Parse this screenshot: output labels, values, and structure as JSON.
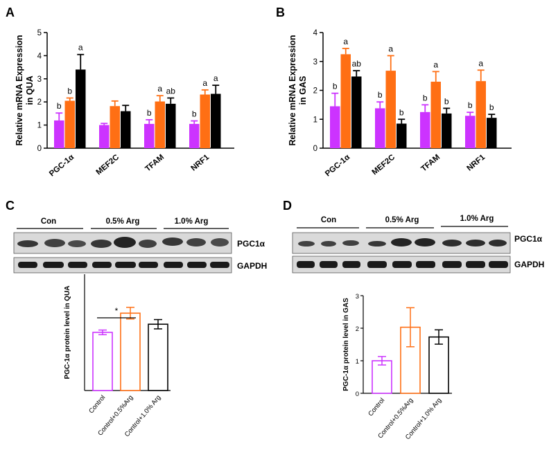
{
  "colors": {
    "purple": "#cc33ff",
    "orange": "#ff6f14",
    "black": "#000000"
  },
  "panels": {
    "a": "A",
    "b": "B",
    "c": "C",
    "d": "D"
  },
  "blots": {
    "c": {
      "groups": [
        "Con",
        "0.5% Arg",
        "1.0% Arg"
      ],
      "target": "PGC1α",
      "loading": "GAPDH"
    },
    "d": {
      "groups": [
        "Con",
        "0.5% Arg",
        "1.0% Arg"
      ],
      "target": "PGC1α",
      "loading": "GAPDH"
    }
  },
  "chart_data": [
    {
      "id": "A",
      "type": "bar",
      "ylabel": "Relative mRNA Expression in QUA",
      "ylabel_lines": [
        "Relative mRNA Expression",
        "in QUA"
      ],
      "ylim": [
        0,
        5
      ],
      "yticks": [
        "0",
        "1",
        "2",
        "3",
        "4",
        "5"
      ],
      "categories": [
        "PGC-1α",
        "MEF2C",
        "TFAM",
        "NRF1"
      ],
      "series": [
        {
          "name": "Control",
          "color": "purple",
          "values": [
            1.2,
            1.0,
            1.05,
            1.05
          ],
          "errors": [
            0.32,
            0.07,
            0.18,
            0.13
          ]
        },
        {
          "name": "Control+0.5%Arg",
          "color": "orange",
          "values": [
            2.05,
            1.82,
            2.02,
            2.32
          ],
          "errors": [
            0.12,
            0.22,
            0.25,
            0.2
          ]
        },
        {
          "name": "Control+1.0% Arg",
          "color": "black",
          "values": [
            3.4,
            1.6,
            1.92,
            2.35
          ],
          "errors": [
            0.65,
            0.25,
            0.25,
            0.37
          ]
        }
      ],
      "annotations": [
        [
          "b",
          "b",
          "a"
        ],
        [
          "",
          "",
          ""
        ],
        [
          "b",
          "a",
          "ab"
        ],
        [
          "b",
          "a",
          "a"
        ]
      ]
    },
    {
      "id": "B",
      "type": "bar",
      "ylabel": "Relative mRNA Expression in GAS",
      "ylabel_lines": [
        "Relative mRNA Expression",
        "in GAS"
      ],
      "ylim": [
        0,
        4
      ],
      "yticks": [
        "0",
        "1",
        "2",
        "3",
        "4"
      ],
      "categories": [
        "PGC-1α",
        "MEF2C",
        "TFAM",
        "NRF1"
      ],
      "series": [
        {
          "name": "Control",
          "color": "purple",
          "values": [
            1.45,
            1.38,
            1.25,
            1.12
          ],
          "errors": [
            0.45,
            0.22,
            0.25,
            0.12
          ]
        },
        {
          "name": "Control+0.5%Arg",
          "color": "orange",
          "values": [
            3.25,
            2.68,
            2.3,
            2.32
          ],
          "errors": [
            0.2,
            0.52,
            0.35,
            0.38
          ]
        },
        {
          "name": "Control+1.0% Arg",
          "color": "black",
          "values": [
            2.48,
            0.85,
            1.2,
            1.05
          ],
          "errors": [
            0.2,
            0.15,
            0.18,
            0.12
          ]
        }
      ],
      "annotations": [
        [
          "b",
          "a",
          "ab"
        ],
        [
          "b",
          "a",
          "b"
        ],
        [
          "b",
          "a",
          "b"
        ],
        [
          "b",
          "a",
          "b"
        ]
      ]
    },
    {
      "id": "C",
      "type": "bar",
      "style": "open",
      "ylabel": "PGC-1α protein level in QUA",
      "ylim": [
        0,
        2.0
      ],
      "categories": [
        "Control",
        "Control+0.5%Arg",
        "Control+1.0% Arg"
      ],
      "colors": [
        "purple",
        "orange",
        "black"
      ],
      "values": [
        1.0,
        1.33,
        1.14
      ],
      "errors": [
        0.04,
        0.1,
        0.08
      ],
      "significance": {
        "between": [
          0,
          1
        ],
        "label": "*"
      }
    },
    {
      "id": "D",
      "type": "bar",
      "style": "open",
      "ylabel": "PGC-1α protein level in GAS",
      "ylim": [
        0,
        3
      ],
      "yticks": [
        "0",
        "1",
        "2",
        "3"
      ],
      "categories": [
        "Control",
        "Control+0.5%Arg",
        "Control+1.0% Arg"
      ],
      "colors": [
        "purple",
        "orange",
        "black"
      ],
      "values": [
        1.0,
        2.03,
        1.73
      ],
      "errors": [
        0.13,
        0.6,
        0.22
      ]
    }
  ]
}
